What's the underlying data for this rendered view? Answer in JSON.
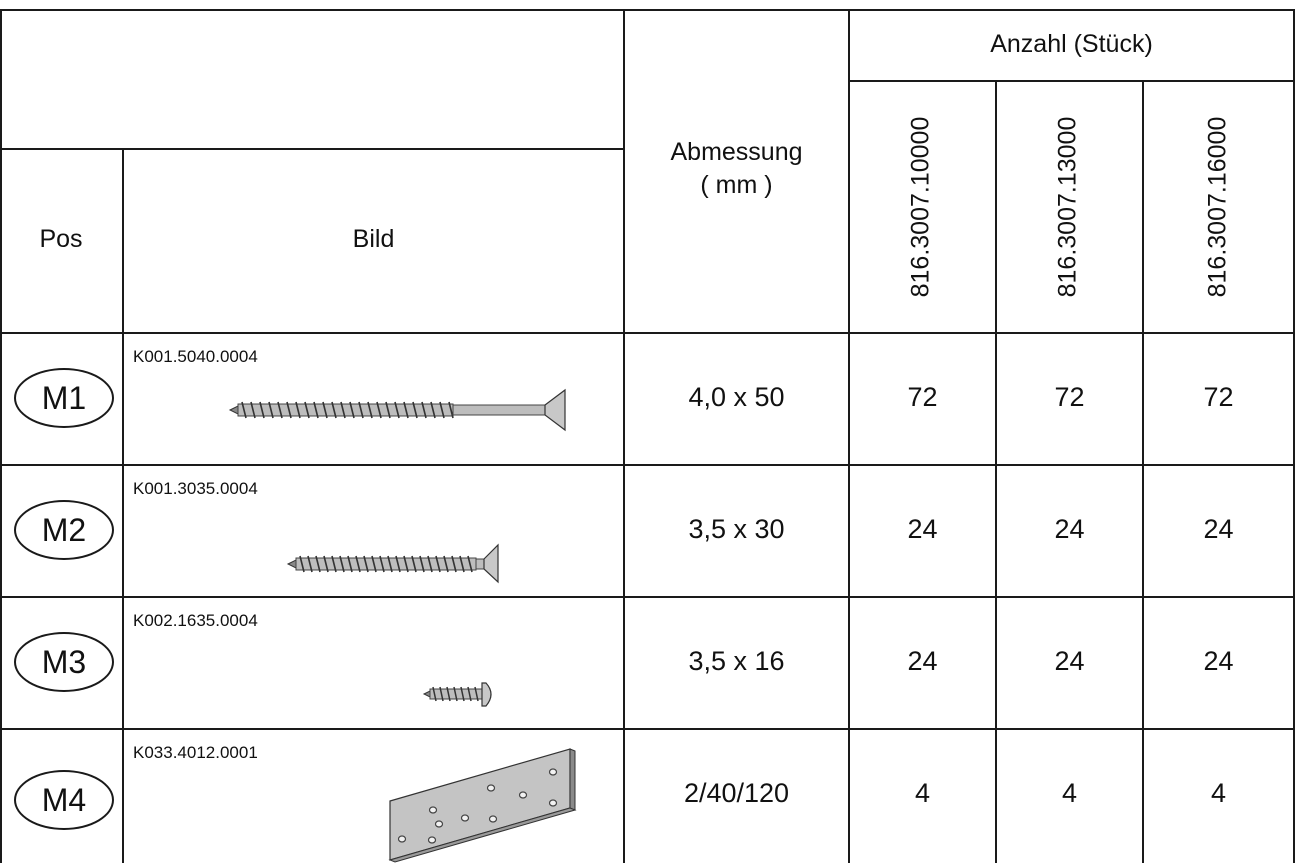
{
  "header": {
    "group_label": "Anzahl (Stück)",
    "pos_label": "Pos",
    "bild_label": "Bild",
    "abmessung_label": "Abmessung",
    "abmessung_unit": "( mm )",
    "articles": [
      "816.3007.10000",
      "816.3007.13000",
      "816.3007.16000"
    ]
  },
  "rows": [
    {
      "pos": "M1",
      "code": "K001.5040.0004",
      "dimension": "4,0 x 50",
      "counts": [
        "72",
        "72",
        "72"
      ],
      "image": "long-screw-icon"
    },
    {
      "pos": "M2",
      "code": "K001.3035.0004",
      "dimension": "3,5 x 30",
      "counts": [
        "24",
        "24",
        "24"
      ],
      "image": "medium-screw-icon"
    },
    {
      "pos": "M3",
      "code": "K002.1635.0004",
      "dimension": "3,5 x 16",
      "counts": [
        "24",
        "24",
        "24"
      ],
      "image": "short-screw-icon"
    },
    {
      "pos": "M4",
      "code": "K033.4012.0001",
      "dimension": "2/40/120",
      "counts": [
        "4",
        "4",
        "4"
      ],
      "image": "perforated-plate-icon"
    }
  ]
}
